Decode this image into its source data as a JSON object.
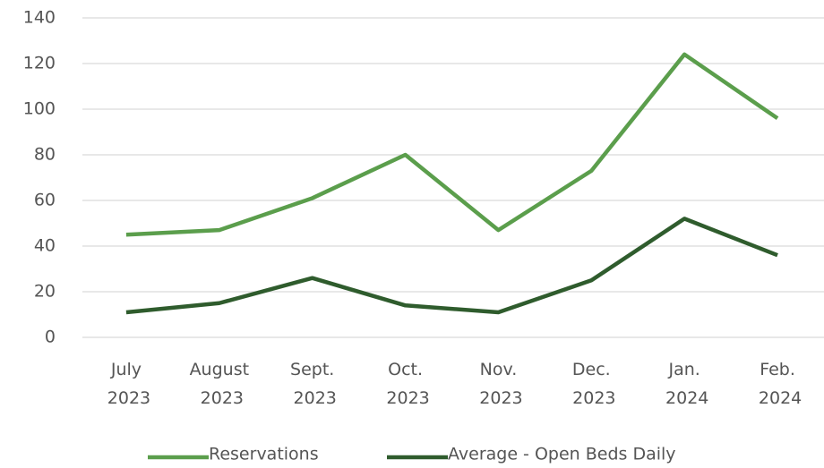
{
  "chart_data": {
    "type": "line",
    "categories": [
      "July 2023",
      "August 2023",
      "Sept. 2023",
      "Oct. 2023",
      "Nov. 2023",
      "Dec. 2023",
      "Jan. 2024",
      "Feb. 2024"
    ],
    "series": [
      {
        "name": "Reservations",
        "color": "#5b9e4c",
        "values": [
          45,
          47,
          61,
          80,
          47,
          73,
          124,
          96
        ]
      },
      {
        "name": "Average - Open Beds Daily",
        "color": "#2f5c2d",
        "values": [
          11,
          15,
          26,
          14,
          11,
          25,
          52,
          36
        ]
      }
    ],
    "ylim": [
      0,
      140
    ],
    "yticks": [
      0,
      20,
      40,
      60,
      80,
      100,
      120,
      140
    ],
    "grid": true,
    "legend": "bottom"
  }
}
